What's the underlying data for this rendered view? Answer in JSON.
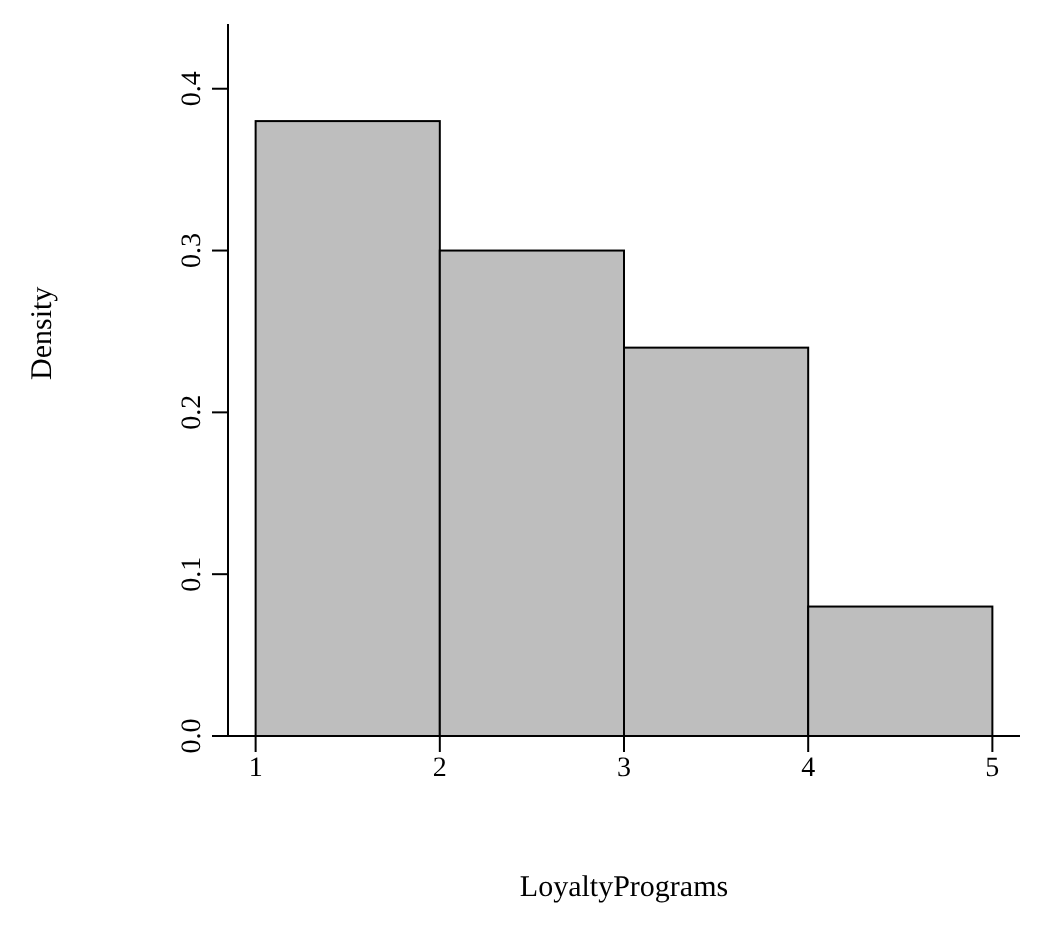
{
  "chart_data": {
    "type": "histogram",
    "xlabel": "LoyaltyPrograms",
    "ylabel": "Density",
    "bins": [
      1,
      2,
      3,
      4,
      5
    ],
    "values": [
      0.38,
      0.3,
      0.24,
      0.08
    ],
    "color": "#bebebe",
    "xlim": [
      0.85,
      5.15
    ],
    "xticks": [
      1,
      2,
      3,
      4,
      5
    ],
    "ylim": [
      0,
      0.44
    ],
    "yticks": [
      {
        "value": 0,
        "label": "0.0"
      },
      0.1,
      0.2,
      0.3,
      0.4
    ],
    "grid": false
  }
}
